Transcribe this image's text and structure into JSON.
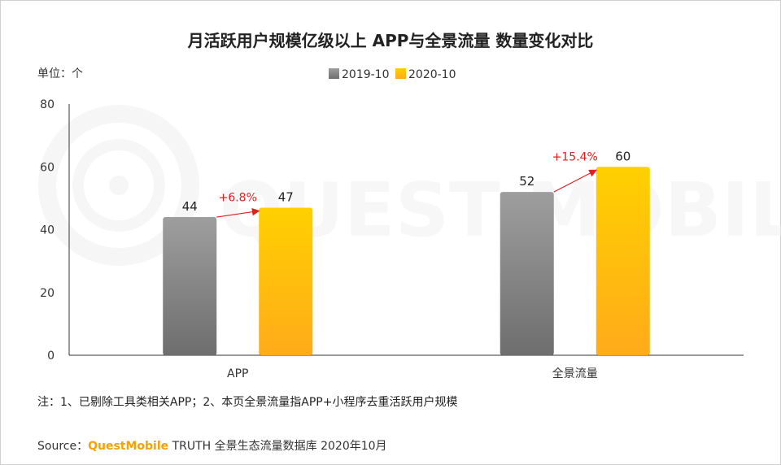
{
  "chart_data": {
    "type": "bar",
    "title": "月活跃用户规模亿级以上 APP与全景流量 数量变化对比",
    "unit_label": "单位：个",
    "categories": [
      "APP",
      "全景流量"
    ],
    "series": [
      {
        "name": "2019-10",
        "values": [
          44,
          52
        ],
        "color": "#7d7d7d"
      },
      {
        "name": "2020-10",
        "values": [
          47,
          60
        ],
        "color": "#ffc107"
      }
    ],
    "growth_labels": [
      "+6.8%",
      "+15.4%"
    ],
    "ylim": [
      0,
      80
    ],
    "yticks": [
      0,
      20,
      40,
      60,
      80
    ],
    "legend_position": "top-center",
    "grid": false,
    "watermark": "QUEST MOBILE",
    "accent_color": "#e02020"
  },
  "footer": {
    "note": "注：1、已剔除工具类相关APP；2、本页全景流量指APP+小程序去重活跃用户规模",
    "source_prefix": "Source：",
    "source_brand": "QuestMobile",
    "source_rest": " TRUTH 全景生态流量数据库 2020年10月"
  }
}
